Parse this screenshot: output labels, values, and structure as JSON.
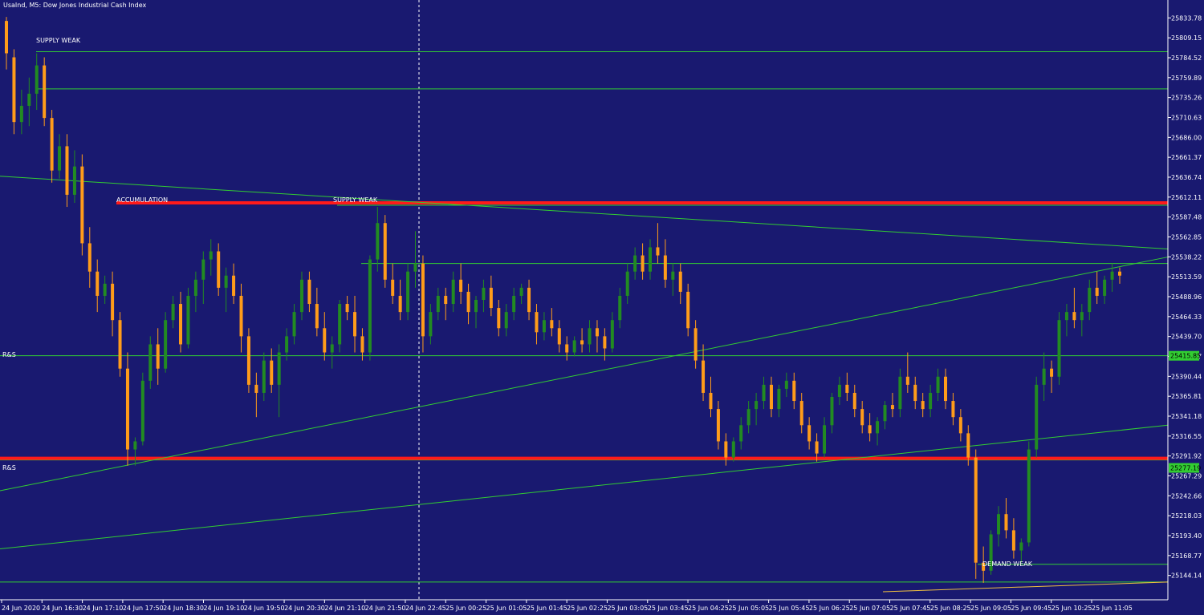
{
  "chart_data": {
    "type": "candlestick",
    "title": "UsaInd, M5: Dow Jones Industrial Cash Index",
    "colors": {
      "background": "#191970",
      "axis": "#ffffff",
      "bull": "#228b22",
      "bear": "#ff9c1a",
      "line": "#32cd32",
      "zone": "#ff1a1a",
      "tag": "#32cd32"
    },
    "y_ticks": [
      "25833.78",
      "25809.15",
      "25784.52",
      "25759.89",
      "25735.26",
      "25710.63",
      "25686.00",
      "25661.37",
      "25636.74",
      "25612.11",
      "25587.48",
      "25562.85",
      "25538.22",
      "25513.59",
      "25488.96",
      "25464.33",
      "25439.70",
      "25415.07",
      "25390.44",
      "25365.81",
      "25341.18",
      "25316.55",
      "25291.92",
      "25267.29",
      "25242.66",
      "25218.03",
      "25193.40",
      "25168.77",
      "25144.14"
    ],
    "x_ticks": [
      "24 Jun 2020",
      "24 Jun 16:30",
      "24 Jun 17:10",
      "24 Jun 17:50",
      "24 Jun 18:30",
      "24 Jun 19:10",
      "24 Jun 19:50",
      "24 Jun 20:30",
      "24 Jun 21:10",
      "24 Jun 21:50",
      "24 Jun 22:45",
      "25 Jun 00:25",
      "25 Jun 01:05",
      "25 Jun 01:45",
      "25 Jun 02:25",
      "25 Jun 03:05",
      "25 Jun 03:45",
      "25 Jun 04:25",
      "25 Jun 05:05",
      "25 Jun 05:45",
      "25 Jun 06:25",
      "25 Jun 07:05",
      "25 Jun 07:45",
      "25 Jun 08:25",
      "25 Jun 09:05",
      "25 Jun 09:45",
      "25 Jun 10:25",
      "25 Jun 11:05"
    ],
    "ylim": [
      25124,
      25846
    ],
    "price_tags": [
      "25415.85",
      "25277.19"
    ],
    "labels": {
      "supply_weak_top": "SUPPLY WEAK",
      "accumulation": "ACCUMULATION",
      "supply_weak_mid": "SUPPLY WEAK",
      "rs_upper": "R&S",
      "rs_lower": "R&S",
      "demand_weak": "DEMAND WEAK"
    },
    "horizontal_levels": [
      25792,
      25746,
      25602,
      25530,
      25416,
      25287,
      25158,
      25136
    ],
    "zones": [
      25605,
      25289
    ],
    "candles_ohlc": [
      [
        25830,
        25835,
        25770,
        25790
      ],
      [
        25785,
        25795,
        25690,
        25705
      ],
      [
        25705,
        25745,
        25690,
        25725
      ],
      [
        25725,
        25760,
        25700,
        25740
      ],
      [
        25740,
        25790,
        25720,
        25775
      ],
      [
        25775,
        25785,
        25700,
        25710
      ],
      [
        25710,
        25720,
        25630,
        25645
      ],
      [
        25645,
        25690,
        25635,
        25675
      ],
      [
        25675,
        25690,
        25600,
        25615
      ],
      [
        25615,
        25670,
        25605,
        25650
      ],
      [
        25650,
        25665,
        25540,
        25555
      ],
      [
        25555,
        25575,
        25500,
        25520
      ],
      [
        25520,
        25535,
        25470,
        25490
      ],
      [
        25490,
        25515,
        25480,
        25505
      ],
      [
        25505,
        25520,
        25440,
        25460
      ],
      [
        25460,
        25470,
        25390,
        25400
      ],
      [
        25400,
        25420,
        25280,
        25300
      ],
      [
        25300,
        25315,
        25280,
        25310
      ],
      [
        25310,
        25395,
        25305,
        25385
      ],
      [
        25385,
        25440,
        25375,
        25430
      ],
      [
        25430,
        25450,
        25380,
        25400
      ],
      [
        25400,
        25470,
        25395,
        25460
      ],
      [
        25460,
        25490,
        25450,
        25480
      ],
      [
        25480,
        25495,
        25420,
        25430
      ],
      [
        25430,
        25500,
        25425,
        25490
      ],
      [
        25490,
        25520,
        25470,
        25510
      ],
      [
        25510,
        25545,
        25480,
        25535
      ],
      [
        25535,
        25560,
        25515,
        25545
      ],
      [
        25545,
        25555,
        25490,
        25500
      ],
      [
        25500,
        25525,
        25470,
        25515
      ],
      [
        25515,
        25530,
        25480,
        25490
      ],
      [
        25490,
        25505,
        25420,
        25440
      ],
      [
        25440,
        25450,
        25370,
        25380
      ],
      [
        25380,
        25395,
        25340,
        25370
      ],
      [
        25370,
        25420,
        25360,
        25410
      ],
      [
        25410,
        25425,
        25370,
        25380
      ],
      [
        25380,
        25430,
        25340,
        25420
      ],
      [
        25420,
        25450,
        25410,
        25440
      ],
      [
        25440,
        25480,
        25430,
        25470
      ],
      [
        25470,
        25520,
        25460,
        25510
      ],
      [
        25510,
        25520,
        25470,
        25480
      ],
      [
        25480,
        25500,
        25440,
        25450
      ],
      [
        25450,
        25470,
        25410,
        25420
      ],
      [
        25420,
        25440,
        25400,
        25430
      ],
      [
        25430,
        25485,
        25420,
        25480
      ],
      [
        25480,
        25490,
        25460,
        25470
      ],
      [
        25470,
        25490,
        25420,
        25440
      ],
      [
        25440,
        25450,
        25410,
        25420
      ],
      [
        25420,
        25540,
        25410,
        25535
      ],
      [
        25535,
        25600,
        25520,
        25580
      ],
      [
        25580,
        25590,
        25500,
        25510
      ],
      [
        25510,
        25530,
        25480,
        25490
      ],
      [
        25490,
        25510,
        25460,
        25470
      ],
      [
        25470,
        25530,
        25460,
        25520
      ],
      [
        25520,
        25570,
        25500,
        25530
      ],
      [
        25530,
        25540,
        25420,
        25440
      ],
      [
        25440,
        25480,
        25430,
        25470
      ],
      [
        25470,
        25500,
        25460,
        25490
      ],
      [
        25490,
        25500,
        25460,
        25480
      ],
      [
        25480,
        25520,
        25470,
        25510
      ],
      [
        25510,
        25530,
        25480,
        25495
      ],
      [
        25495,
        25505,
        25455,
        25470
      ],
      [
        25470,
        25490,
        25450,
        25485
      ],
      [
        25485,
        25510,
        25470,
        25500
      ],
      [
        25500,
        25515,
        25465,
        25475
      ],
      [
        25475,
        25485,
        25440,
        25450
      ],
      [
        25450,
        25480,
        25440,
        25470
      ],
      [
        25470,
        25500,
        25460,
        25490
      ],
      [
        25490,
        25505,
        25480,
        25500
      ],
      [
        25500,
        25510,
        25460,
        25470
      ],
      [
        25470,
        25480,
        25430,
        25445
      ],
      [
        25445,
        25470,
        25435,
        25460
      ],
      [
        25460,
        25475,
        25440,
        25450
      ],
      [
        25450,
        25460,
        25420,
        25430
      ],
      [
        25430,
        25440,
        25410,
        25420
      ],
      [
        25420,
        25440,
        25415,
        25435
      ],
      [
        25435,
        25450,
        25420,
        25430
      ],
      [
        25430,
        25460,
        25420,
        25450
      ],
      [
        25450,
        25460,
        25420,
        25440
      ],
      [
        25440,
        25450,
        25410,
        25425
      ],
      [
        25425,
        25470,
        25420,
        25460
      ],
      [
        25460,
        25500,
        25450,
        25490
      ],
      [
        25490,
        25530,
        25480,
        25520
      ],
      [
        25520,
        25550,
        25510,
        25540
      ],
      [
        25540,
        25555,
        25510,
        25520
      ],
      [
        25520,
        25560,
        25510,
        25550
      ],
      [
        25550,
        25580,
        25530,
        25540
      ],
      [
        25540,
        25560,
        25500,
        25510
      ],
      [
        25510,
        25530,
        25490,
        25520
      ],
      [
        25520,
        25530,
        25480,
        25495
      ],
      [
        25495,
        25505,
        25440,
        25450
      ],
      [
        25450,
        25460,
        25400,
        25410
      ],
      [
        25410,
        25430,
        25360,
        25370
      ],
      [
        25370,
        25390,
        25340,
        25350
      ],
      [
        25350,
        25360,
        25300,
        25310
      ],
      [
        25310,
        25320,
        25280,
        25290
      ],
      [
        25290,
        25315,
        25285,
        25310
      ],
      [
        25310,
        25340,
        25300,
        25330
      ],
      [
        25330,
        25360,
        25320,
        25350
      ],
      [
        25350,
        25370,
        25330,
        25360
      ],
      [
        25360,
        25390,
        25350,
        25380
      ],
      [
        25380,
        25390,
        25340,
        25350
      ],
      [
        25350,
        25380,
        25340,
        25375
      ],
      [
        25375,
        25395,
        25365,
        25385
      ],
      [
        25385,
        25395,
        25350,
        25360
      ],
      [
        25360,
        25370,
        25320,
        25330
      ],
      [
        25330,
        25340,
        25300,
        25310
      ],
      [
        25310,
        25320,
        25285,
        25295
      ],
      [
        25295,
        25340,
        25290,
        25330
      ],
      [
        25330,
        25370,
        25320,
        25365
      ],
      [
        25365,
        25390,
        25355,
        25380
      ],
      [
        25380,
        25395,
        25360,
        25370
      ],
      [
        25370,
        25380,
        25340,
        25350
      ],
      [
        25350,
        25360,
        25320,
        25330
      ],
      [
        25330,
        25345,
        25310,
        25320
      ],
      [
        25320,
        25340,
        25305,
        25335
      ],
      [
        25335,
        25360,
        25325,
        25355
      ],
      [
        25355,
        25370,
        25340,
        25350
      ],
      [
        25350,
        25400,
        25340,
        25390
      ],
      [
        25390,
        25420,
        25370,
        25380
      ],
      [
        25380,
        25390,
        25350,
        25360
      ],
      [
        25360,
        25370,
        25340,
        25350
      ],
      [
        25350,
        25380,
        25340,
        25370
      ],
      [
        25370,
        25400,
        25360,
        25390
      ],
      [
        25390,
        25400,
        25350,
        25360
      ],
      [
        25360,
        25370,
        25330,
        25340
      ],
      [
        25340,
        25350,
        25310,
        25320
      ],
      [
        25320,
        25330,
        25280,
        25290
      ],
      [
        25290,
        25300,
        25140,
        25160
      ],
      [
        25160,
        25180,
        25135,
        25150
      ],
      [
        25150,
        25200,
        25145,
        25195
      ],
      [
        25195,
        25230,
        25180,
        25220
      ],
      [
        25220,
        25240,
        25190,
        25200
      ],
      [
        25200,
        25215,
        25165,
        25175
      ],
      [
        25175,
        25190,
        25160,
        25185
      ],
      [
        25185,
        25310,
        25180,
        25300
      ],
      [
        25300,
        25390,
        25290,
        25380
      ],
      [
        25380,
        25420,
        25360,
        25400
      ],
      [
        25400,
        25410,
        25370,
        25390
      ],
      [
        25390,
        25470,
        25380,
        25460
      ],
      [
        25460,
        25480,
        25440,
        25470
      ],
      [
        25470,
        25500,
        25450,
        25460
      ],
      [
        25460,
        25480,
        25440,
        25470
      ],
      [
        25470,
        25510,
        25460,
        25500
      ],
      [
        25500,
        25520,
        25480,
        25490
      ],
      [
        25490,
        25515,
        25480,
        25510
      ],
      [
        25510,
        25530,
        25495,
        25520
      ],
      [
        25520,
        25525,
        25505,
        25515
      ]
    ]
  }
}
